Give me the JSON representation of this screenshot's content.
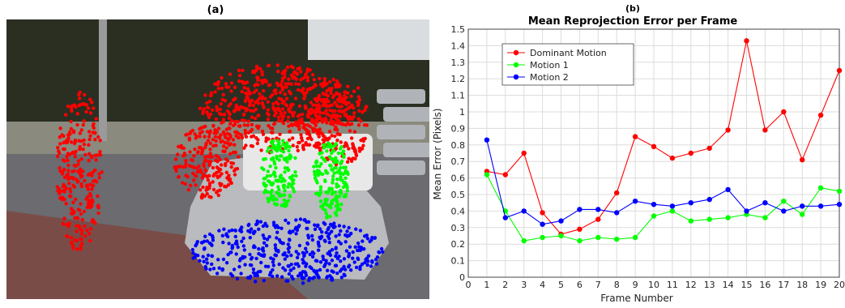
{
  "figure": {
    "left_label": "(a)",
    "right_label": "(b)"
  },
  "scene": {
    "colors": {
      "sky": "#d9dde0",
      "trees": "#2a2f22",
      "road": "#6b6b70",
      "brick": "#7a4c48",
      "car": "#b9bbbe",
      "dominant": "#ff0000",
      "motion1": "#00ff00",
      "motion2": "#0000ff"
    },
    "icons": [
      "street-scene-photo",
      "car-shape",
      "tracked-point-clusters"
    ]
  },
  "chart_data": {
    "type": "line",
    "title": "Mean Reprojection Error per Frame",
    "xlabel": "Frame Number",
    "ylabel": "Mean Error (Pixels)",
    "xlim": [
      0,
      20
    ],
    "ylim": [
      0,
      1.5
    ],
    "xticks": [
      "0",
      "1",
      "2",
      "3",
      "4",
      "5",
      "6",
      "7",
      "8",
      "9",
      "10",
      "11",
      "12",
      "13",
      "14",
      "15",
      "16",
      "17",
      "18",
      "19",
      "20"
    ],
    "yticks": [
      "0",
      "0.1",
      "0.2",
      "0.3",
      "0.4",
      "0.5",
      "0.6",
      "0.7",
      "0.8",
      "0.9",
      "1",
      "1.1",
      "1.2",
      "1.3",
      "1.4",
      "1.5"
    ],
    "grid": true,
    "legend_position": "top-left",
    "x": [
      1,
      2,
      3,
      4,
      5,
      6,
      7,
      8,
      9,
      10,
      11,
      12,
      13,
      14,
      15,
      16,
      17,
      18,
      19,
      20
    ],
    "series": [
      {
        "name": "Dominant Motion",
        "color": "#ff0000",
        "values": [
          0.64,
          0.62,
          0.75,
          0.39,
          0.26,
          0.29,
          0.35,
          0.51,
          0.85,
          0.79,
          0.72,
          0.75,
          0.78,
          0.89,
          1.43,
          0.89,
          1.0,
          0.71,
          0.98,
          1.25
        ]
      },
      {
        "name": "Motion 1",
        "color": "#00ff00",
        "values": [
          0.62,
          0.4,
          0.22,
          0.24,
          0.25,
          0.22,
          0.24,
          0.23,
          0.24,
          0.37,
          0.4,
          0.34,
          0.35,
          0.36,
          0.38,
          0.36,
          0.46,
          0.38,
          0.54,
          0.52
        ]
      },
      {
        "name": "Motion 2",
        "color": "#0000ff",
        "values": [
          0.83,
          0.36,
          0.4,
          0.32,
          0.34,
          0.41,
          0.41,
          0.39,
          0.46,
          0.44,
          0.43,
          0.45,
          0.47,
          0.53,
          0.4,
          0.45,
          0.4,
          0.43,
          0.43,
          0.44
        ]
      }
    ]
  }
}
